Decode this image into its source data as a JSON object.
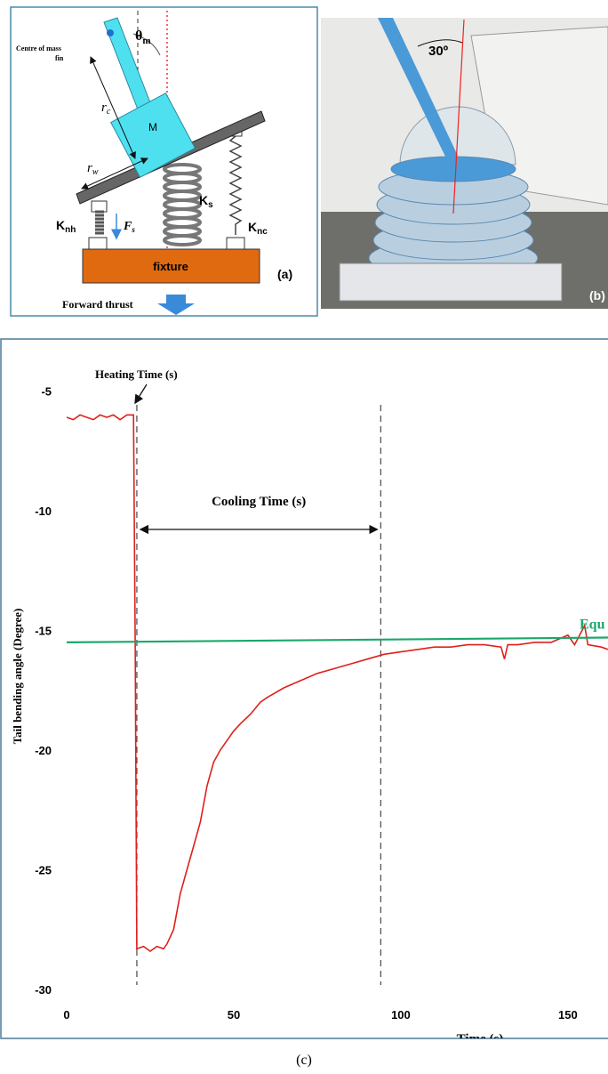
{
  "figure": {
    "panel_a": {
      "theta": "θ",
      "theta_sub": "m",
      "centre_of_mass": "Centre of mass",
      "fin": "fin",
      "rc": "r",
      "rc_sub": "c",
      "mass": "M",
      "rw": "r",
      "rw_sub": "w",
      "ks": "K",
      "ks_sub": "s",
      "knh": "K",
      "knh_sub": "nh",
      "fs": "F",
      "fs_sub": "s",
      "knc": "K",
      "knc_sub": "nc",
      "fixture": "fixture",
      "label": "(a)",
      "thrust": "Forward thrust"
    },
    "panel_b": {
      "angle": "30º",
      "label": "(b)"
    },
    "caption": "(c)"
  },
  "chart_data": {
    "type": "line",
    "x_label": "Time (s)",
    "y_label": "Tail bending angle (Degree)",
    "annotations": {
      "heating": "Heating Time (s)",
      "cooling": "Cooling Time (s)"
    },
    "vlines": [
      21,
      94
    ],
    "xlim": [
      0,
      162
    ],
    "ylim": [
      -30,
      -3.5
    ],
    "xticks": [
      0,
      50,
      100,
      150
    ],
    "yticks": [
      -5,
      -10,
      -15,
      -20,
      -25,
      -30
    ],
    "series": [
      {
        "color": "#e0201b",
        "x": [
          0,
          2,
          4,
          6,
          8,
          10,
          12,
          14,
          16,
          18,
          20,
          20.5,
          21,
          23,
          25,
          27,
          29,
          30,
          32,
          34,
          36,
          38,
          40,
          42,
          44,
          46,
          48,
          50,
          52,
          55,
          58,
          60,
          65,
          70,
          75,
          80,
          85,
          90,
          95,
          100,
          105,
          110,
          115,
          120,
          125,
          130,
          131,
          132,
          135,
          140,
          145,
          150,
          152,
          155,
          156,
          160,
          162
        ],
        "values": [
          -6.1,
          -6.2,
          -6.0,
          -6.1,
          -6.2,
          -6.0,
          -6.1,
          -6.0,
          -6.2,
          -6.0,
          -6.0,
          -15.5,
          -28.3,
          -28.2,
          -28.4,
          -28.2,
          -28.3,
          -28.1,
          -27.5,
          -26.0,
          -25.0,
          -24.0,
          -23.0,
          -21.5,
          -20.5,
          -20.0,
          -19.6,
          -19.2,
          -18.9,
          -18.5,
          -18.0,
          -17.8,
          -17.4,
          -17.1,
          -16.8,
          -16.6,
          -16.4,
          -16.2,
          -16.0,
          -15.9,
          -15.8,
          -15.7,
          -15.7,
          -15.6,
          -15.6,
          -15.7,
          -16.2,
          -15.6,
          -15.6,
          -15.5,
          -15.5,
          -15.2,
          -15.6,
          -14.8,
          -15.6,
          -15.7,
          -15.8
        ]
      },
      {
        "name": "Equ",
        "color": "#1aa86a",
        "x": [
          0,
          162
        ],
        "values": [
          -15.5,
          -15.3
        ]
      }
    ]
  }
}
